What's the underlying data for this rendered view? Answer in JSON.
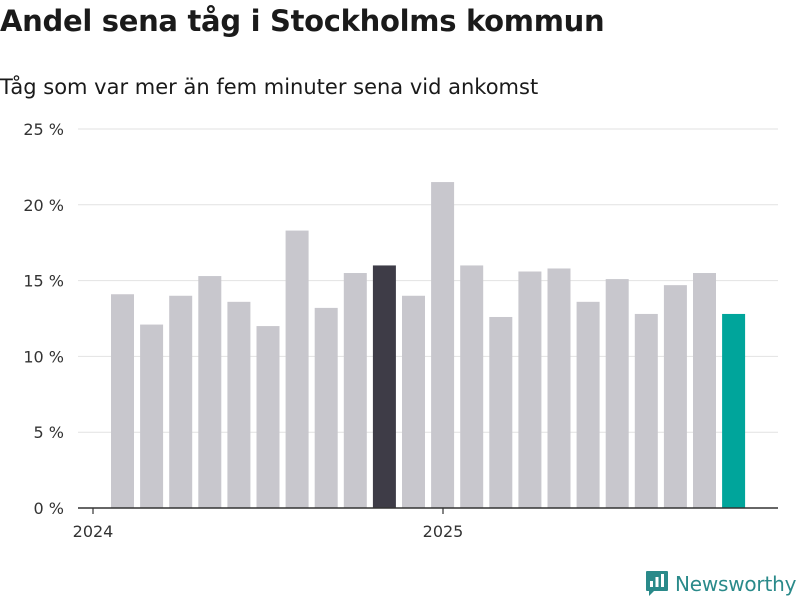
{
  "header": {
    "title": "Andel sena tåg i Stockholms kommun",
    "subtitle": "Tåg som var mer än fem minuter sena vid ankomst"
  },
  "brand": {
    "name": "Newsworthy",
    "icon": "newsworthy-logo-icon"
  },
  "colors": {
    "bar_default": "#c8c7cd",
    "bar_highlight": "#3e3c47",
    "bar_latest": "#00a59b",
    "gridline": "#e2e2e2",
    "axis": "#333333",
    "tick_text": "#333333",
    "brand": "#2a8a8a"
  },
  "chart_data": {
    "type": "bar",
    "title": "Andel sena tåg i Stockholms kommun",
    "subtitle": "Tåg som var mer än fem minuter sena vid ankomst",
    "xlabel": "",
    "ylabel": "",
    "ylim": [
      0,
      25
    ],
    "yticks": [
      0,
      5,
      10,
      15,
      20,
      25
    ],
    "yticklabels": [
      "0 %",
      "5 %",
      "10 %",
      "15 %",
      "20 %",
      "25 %"
    ],
    "xticklabels": [
      {
        "label": "2024",
        "index": 0
      },
      {
        "label": "2025",
        "index": 12
      }
    ],
    "grid": true,
    "values": [
      14.1,
      12.1,
      14.0,
      15.3,
      13.6,
      12.0,
      18.3,
      13.2,
      15.5,
      16.0,
      14.0,
      21.5,
      16.0,
      12.6,
      15.6,
      15.8,
      13.6,
      15.1,
      12.8,
      14.7,
      15.5,
      12.8
    ],
    "highlight_index": 9,
    "latest_index": 21
  }
}
